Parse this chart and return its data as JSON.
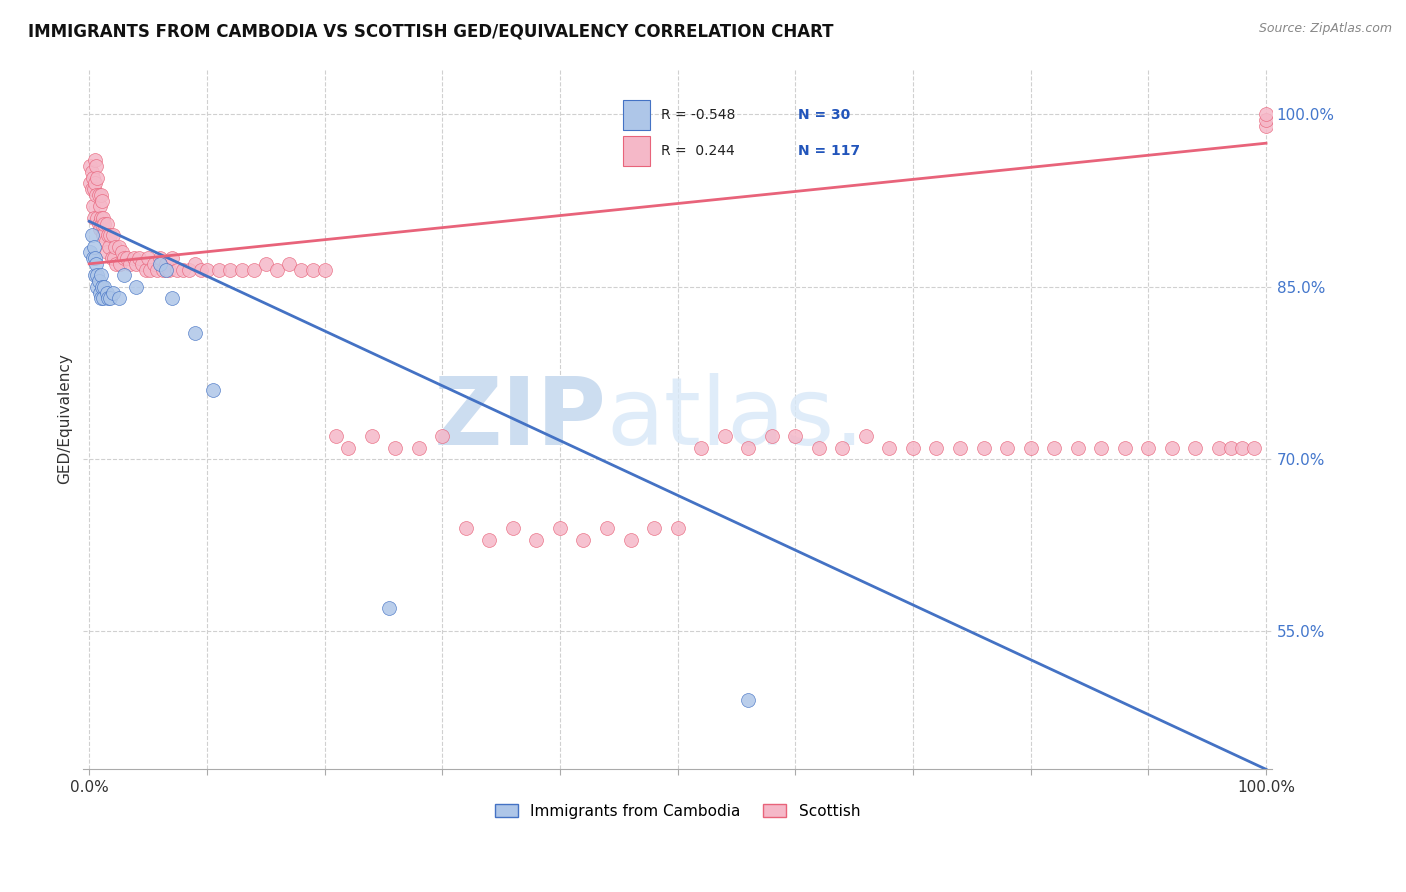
{
  "title": "IMMIGRANTS FROM CAMBODIA VS SCOTTISH GED/EQUIVALENCY CORRELATION CHART",
  "source": "Source: ZipAtlas.com",
  "ylabel": "GED/Equivalency",
  "y_tick_labels": [
    "55.0%",
    "70.0%",
    "85.0%",
    "100.0%"
  ],
  "y_tick_values": [
    0.55,
    0.7,
    0.85,
    1.0
  ],
  "x_tick_values": [
    0.0,
    0.1,
    0.2,
    0.3,
    0.4,
    0.5,
    0.6,
    0.7,
    0.8,
    0.9,
    1.0
  ],
  "legend_r_cambodia": "-0.548",
  "legend_n_cambodia": "30",
  "legend_r_scottish": "0.244",
  "legend_n_scottish": "117",
  "cambodia_color": "#aec6e8",
  "scottish_color": "#f5b8c8",
  "cambodia_line_color": "#4472c4",
  "scottish_line_color": "#e8637a",
  "background_color": "#ffffff",
  "grid_color": "#d0d0d0",
  "scatter_size": 100,
  "cambodia_points_x": [
    0.001,
    0.002,
    0.003,
    0.004,
    0.005,
    0.005,
    0.006,
    0.007,
    0.007,
    0.008,
    0.009,
    0.01,
    0.01,
    0.011,
    0.012,
    0.013,
    0.015,
    0.016,
    0.018,
    0.02,
    0.025,
    0.03,
    0.04,
    0.06,
    0.065,
    0.07,
    0.09,
    0.105,
    0.255,
    0.56
  ],
  "cambodia_points_y": [
    0.88,
    0.895,
    0.875,
    0.885,
    0.86,
    0.875,
    0.87,
    0.86,
    0.85,
    0.855,
    0.845,
    0.86,
    0.84,
    0.85,
    0.84,
    0.85,
    0.845,
    0.84,
    0.84,
    0.845,
    0.84,
    0.86,
    0.85,
    0.87,
    0.865,
    0.84,
    0.81,
    0.76,
    0.57,
    0.49
  ],
  "scottish_points_x": [
    0.001,
    0.001,
    0.002,
    0.002,
    0.003,
    0.003,
    0.004,
    0.004,
    0.005,
    0.005,
    0.006,
    0.006,
    0.007,
    0.007,
    0.008,
    0.008,
    0.009,
    0.009,
    0.01,
    0.01,
    0.011,
    0.011,
    0.012,
    0.012,
    0.013,
    0.014,
    0.015,
    0.015,
    0.016,
    0.017,
    0.018,
    0.019,
    0.02,
    0.021,
    0.022,
    0.023,
    0.025,
    0.026,
    0.028,
    0.03,
    0.032,
    0.035,
    0.038,
    0.04,
    0.042,
    0.045,
    0.048,
    0.05,
    0.052,
    0.055,
    0.058,
    0.06,
    0.063,
    0.065,
    0.068,
    0.07,
    0.075,
    0.08,
    0.085,
    0.09,
    0.095,
    0.1,
    0.11,
    0.12,
    0.13,
    0.14,
    0.15,
    0.16,
    0.17,
    0.18,
    0.19,
    0.2,
    0.21,
    0.22,
    0.24,
    0.26,
    0.28,
    0.3,
    0.32,
    0.34,
    0.36,
    0.38,
    0.4,
    0.42,
    0.44,
    0.46,
    0.48,
    0.5,
    0.52,
    0.54,
    0.56,
    0.58,
    0.6,
    0.62,
    0.64,
    0.66,
    0.68,
    0.7,
    0.72,
    0.74,
    0.76,
    0.78,
    0.8,
    0.82,
    0.84,
    0.86,
    0.88,
    0.9,
    0.92,
    0.94,
    0.96,
    0.97,
    0.98,
    0.99,
    1.0,
    1.0,
    1.0
  ],
  "scottish_points_y": [
    0.955,
    0.94,
    0.95,
    0.935,
    0.945,
    0.92,
    0.935,
    0.91,
    0.96,
    0.94,
    0.955,
    0.93,
    0.945,
    0.91,
    0.93,
    0.905,
    0.92,
    0.9,
    0.93,
    0.91,
    0.905,
    0.925,
    0.91,
    0.895,
    0.905,
    0.89,
    0.905,
    0.88,
    0.895,
    0.885,
    0.895,
    0.875,
    0.895,
    0.875,
    0.885,
    0.87,
    0.885,
    0.87,
    0.88,
    0.875,
    0.875,
    0.87,
    0.875,
    0.87,
    0.875,
    0.87,
    0.865,
    0.875,
    0.865,
    0.87,
    0.865,
    0.875,
    0.865,
    0.87,
    0.865,
    0.875,
    0.865,
    0.865,
    0.865,
    0.87,
    0.865,
    0.865,
    0.865,
    0.865,
    0.865,
    0.865,
    0.87,
    0.865,
    0.87,
    0.865,
    0.865,
    0.865,
    0.72,
    0.71,
    0.72,
    0.71,
    0.71,
    0.72,
    0.64,
    0.63,
    0.64,
    0.63,
    0.64,
    0.63,
    0.64,
    0.63,
    0.64,
    0.64,
    0.71,
    0.72,
    0.71,
    0.72,
    0.72,
    0.71,
    0.71,
    0.72,
    0.71,
    0.71,
    0.71,
    0.71,
    0.71,
    0.71,
    0.71,
    0.71,
    0.71,
    0.71,
    0.71,
    0.71,
    0.71,
    0.71,
    0.71,
    0.71,
    0.71,
    0.71,
    0.99,
    0.995,
    1.0
  ],
  "blue_line_x": [
    0.0,
    1.0
  ],
  "blue_line_y": [
    0.907,
    0.43
  ],
  "pink_line_x": [
    0.0,
    1.0
  ],
  "pink_line_y": [
    0.87,
    0.975
  ],
  "xlim": [
    -0.005,
    1.005
  ],
  "ylim": [
    0.43,
    1.04
  ]
}
